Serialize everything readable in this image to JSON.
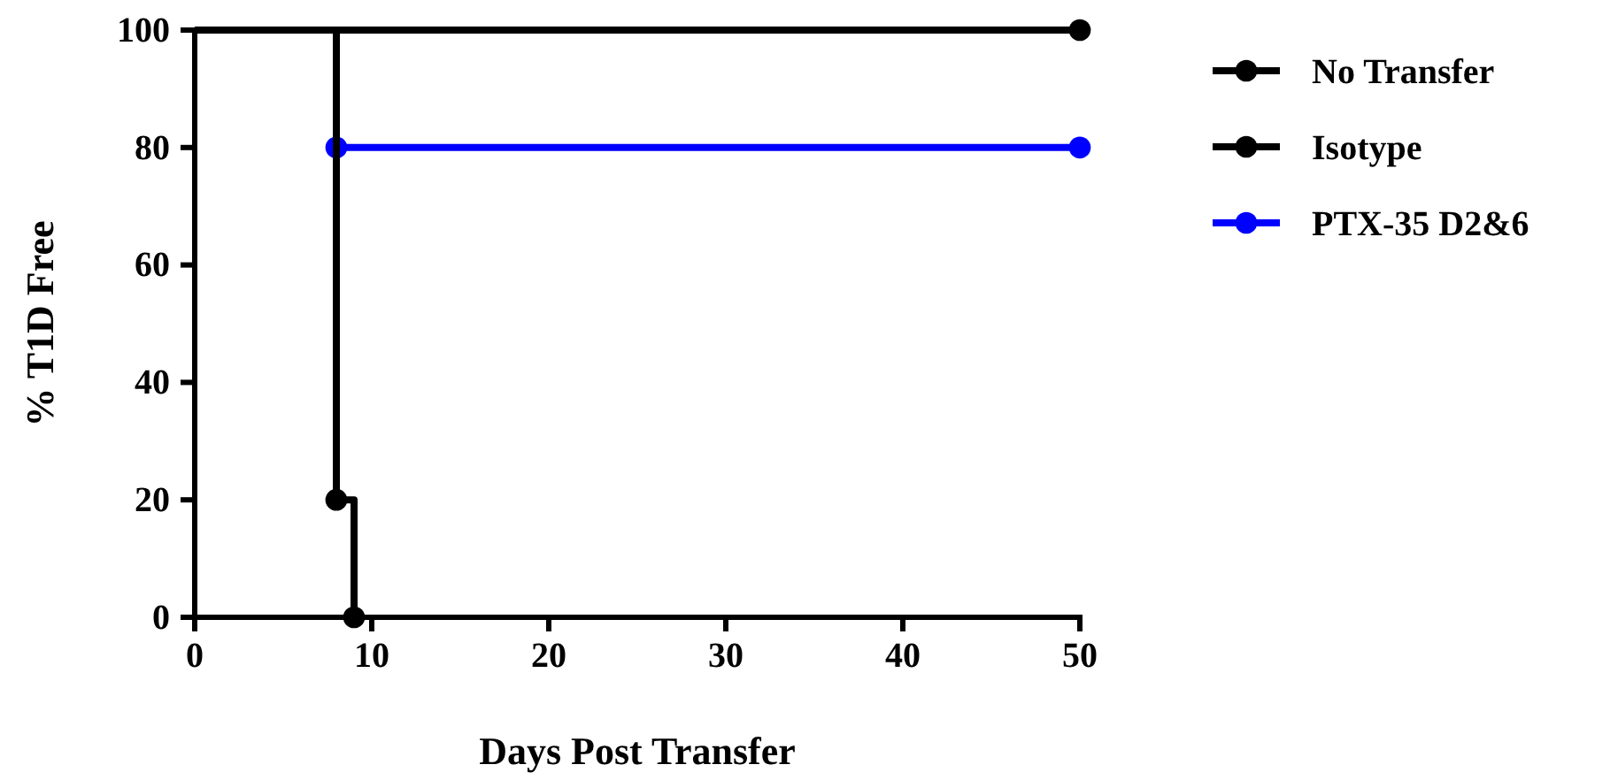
{
  "chart_data": {
    "type": "step",
    "xlabel": "Days Post Transfer",
    "ylabel": "% T1D Free",
    "xlim": [
      0,
      50
    ],
    "xticks": [
      0,
      10,
      20,
      30,
      40,
      50
    ],
    "ylim": [
      0,
      100
    ],
    "yticks": [
      0,
      20,
      40,
      60,
      80,
      100
    ],
    "grid": false,
    "legend": "right",
    "marker": "circle",
    "line_style": "solid",
    "series": [
      {
        "name": "No Transfer",
        "color": "#000000",
        "x": [
          0,
          50
        ],
        "values": [
          100,
          100
        ]
      },
      {
        "name": "Isotype",
        "color": "#000000",
        "x": [
          0,
          8,
          9
        ],
        "values": [
          100,
          20,
          0
        ]
      },
      {
        "name": "PTX-35 D2&6",
        "color": "#0000ff",
        "x": [
          8,
          50
        ],
        "values": [
          80,
          80
        ]
      }
    ]
  }
}
